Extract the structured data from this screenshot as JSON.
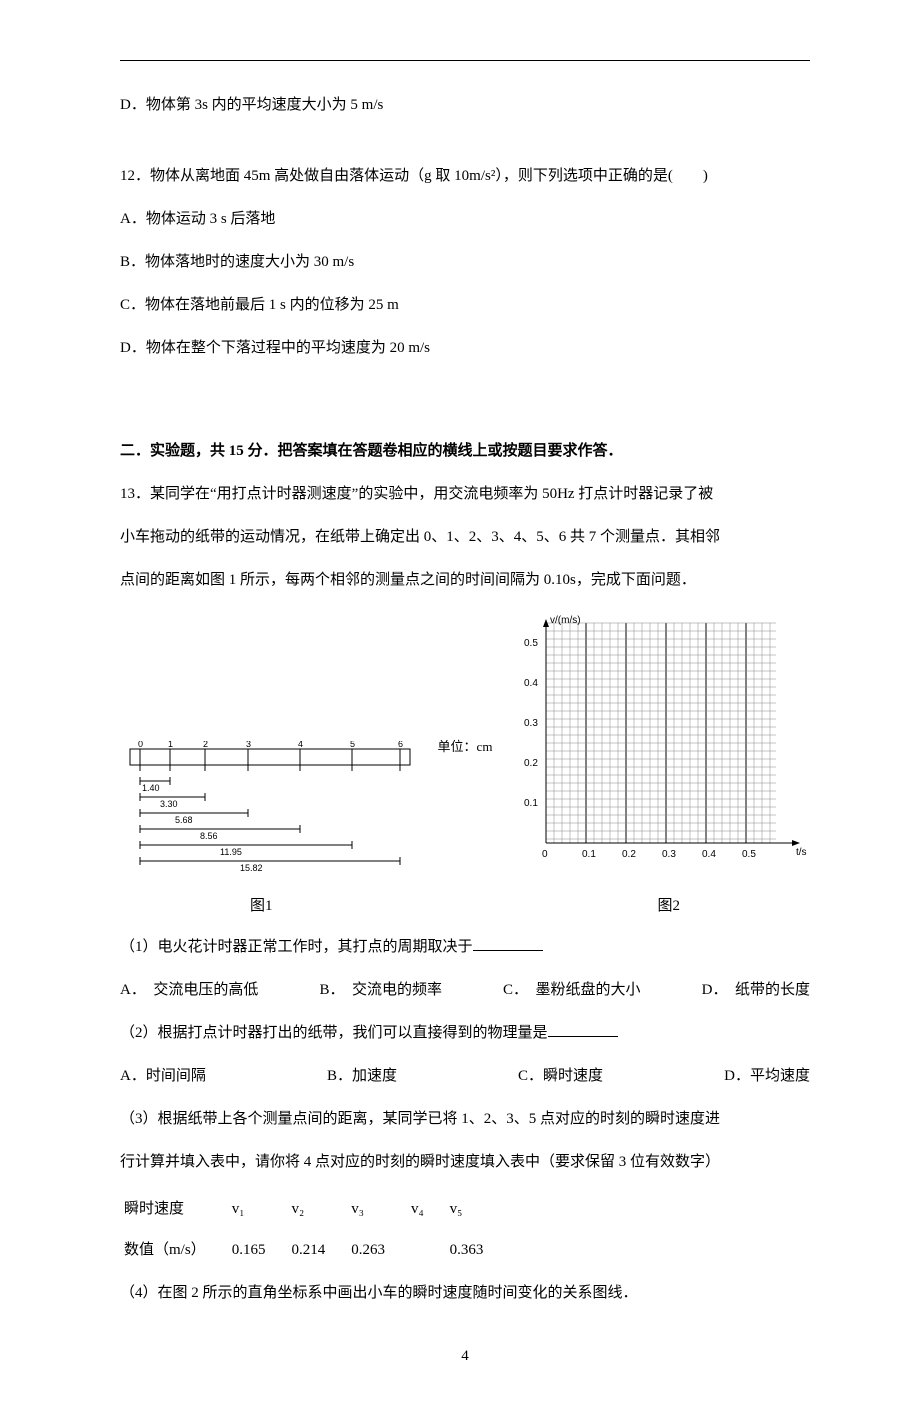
{
  "q11": {
    "D": "D．物体第 3s 内的平均速度大小为 5 m/s"
  },
  "q12": {
    "stem": "12．物体从离地面 45m 高处做自由落体运动（g 取 10m/s²），则下列选项中正确的是(　　)",
    "A": "A．物体运动 3 s 后落地",
    "B": "B．物体落地时的速度大小为 30 m/s",
    "C": "C．物体在落地前最后 1 s 内的位移为 25 m",
    "D": "D．物体在整个下落过程中的平均速度为 20 m/s"
  },
  "section2": "二．实验题，共 15 分．把答案填在答题卷相应的横线上或按题目要求作答．",
  "q13": {
    "stem1": "13．某同学在“用打点计时器测速度”的实验中，用交流电频率为 50Hz 打点计时器记录了被",
    "stem2": "小车拖动的纸带的运动情况，在纸带上确定出 0、1、2、3、4、5、6 共 7 个测量点．其相邻",
    "stem3": "点间的距离如图 1 所示，每两个相邻的测量点之间的时间间隔为 0.10s，完成下面问题．",
    "unit_label": "单位：cm",
    "sub1": "（1）电火花计时器正常工作时，其打点的周期取决于",
    "sub1_opts": {
      "A": "A．　交流电压的高低",
      "B": "B．　交流电的频率",
      "C": "C．　墨粉纸盘的大小",
      "D": "D．　纸带的长度"
    },
    "sub2": "（2）根据打点计时器打出的纸带，我们可以直接得到的物理量是",
    "sub2_opts": {
      "A": "A．时间间隔",
      "B": "B．加速度",
      "C": "C．瞬时速度",
      "D": "D．平均速度"
    },
    "sub3a": "（3）根据纸带上各个测量点间的距离，某同学已将 1、2、3、5 点对应的时刻的瞬时速度进",
    "sub3b": "行计算并填入表中，请你将 4 点对应的时刻的瞬时速度填入表中（要求保留 3 位有效数字）",
    "sub4": "（4）在图 2 所示的直角坐标系中画出小车的瞬时速度随时间变化的关系图线．",
    "caption1": "图1",
    "caption2": "图2"
  },
  "tape": {
    "points": [
      "0",
      "1",
      "2",
      "3",
      "4",
      "5",
      "6"
    ],
    "cum": [
      "1.40",
      "3.30",
      "5.68",
      "8.56",
      "11.95",
      "15.82"
    ]
  },
  "graph": {
    "y_label": "v/(m/s)",
    "x_label": "t/s",
    "y_ticks": [
      "0.1",
      "0.2",
      "0.3",
      "0.4",
      "0.5"
    ],
    "x_ticks": [
      "0",
      "0.1",
      "0.2",
      "0.3",
      "0.4",
      "0.5"
    ]
  },
  "table": {
    "header": [
      "瞬时速度",
      "v₁",
      "v₂",
      "v₃",
      "v₄",
      "v₅"
    ],
    "row": [
      "数值（m/s）",
      "0.165",
      "0.214",
      "0.263",
      "",
      "0.363"
    ]
  },
  "page_number": "4"
}
